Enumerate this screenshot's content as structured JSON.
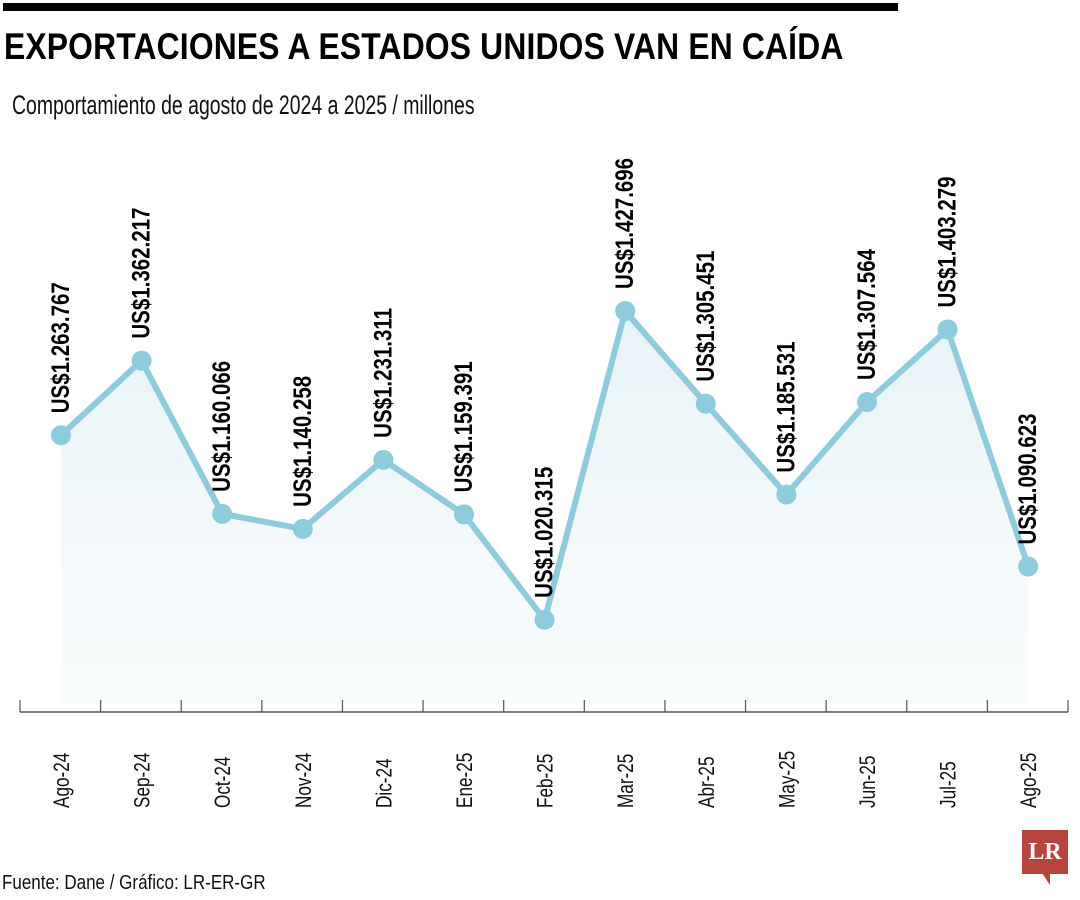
{
  "header": {
    "title": "EXPORTACIONES A ESTADOS UNIDOS VAN EN CAÍDA",
    "subtitle": "Comportamiento de agosto de 2024 a 2025 / millones"
  },
  "footer": {
    "source": "Fuente: Dane / Gráfico: LR-ER-GR",
    "logo": "LR"
  },
  "colors": {
    "line": "#8ecbdc",
    "area_top": "#e4f1f6",
    "axis": "#555555"
  },
  "chart_data": {
    "type": "line",
    "title": "EXPORTACIONES A ESTADOS UNIDOS VAN EN CAÍDA",
    "subtitle": "Comportamiento de agosto de 2024 a 2025 / millones",
    "xlabel": "",
    "ylabel": "",
    "grid": false,
    "ylim": [
      904,
      1706
    ],
    "categories": [
      "Ago-24",
      "Sep-24",
      "Oct-24",
      "Nov-24",
      "Dic-24",
      "Ene-25",
      "Feb-25",
      "Mar-25",
      "Abr-25",
      "May-25",
      "Jun-25",
      "Jul-25",
      "Ago-25"
    ],
    "values": [
      1263.767,
      1362.217,
      1160.066,
      1140.258,
      1231.311,
      1159.391,
      1020.315,
      1427.696,
      1305.451,
      1185.531,
      1307.564,
      1403.279,
      1090.623
    ],
    "labels": [
      "US$1.263.767",
      "US$1.362.217",
      "US$1.160.066",
      "US$1.140.258",
      "US$1.231.311",
      "US$1.159.391",
      "US$1.020.315",
      "US$1.427.696",
      "US$1.305.451",
      "US$1.185.531",
      "US$1.307.564",
      "US$1.403.279",
      "US$1.090.623"
    ]
  }
}
